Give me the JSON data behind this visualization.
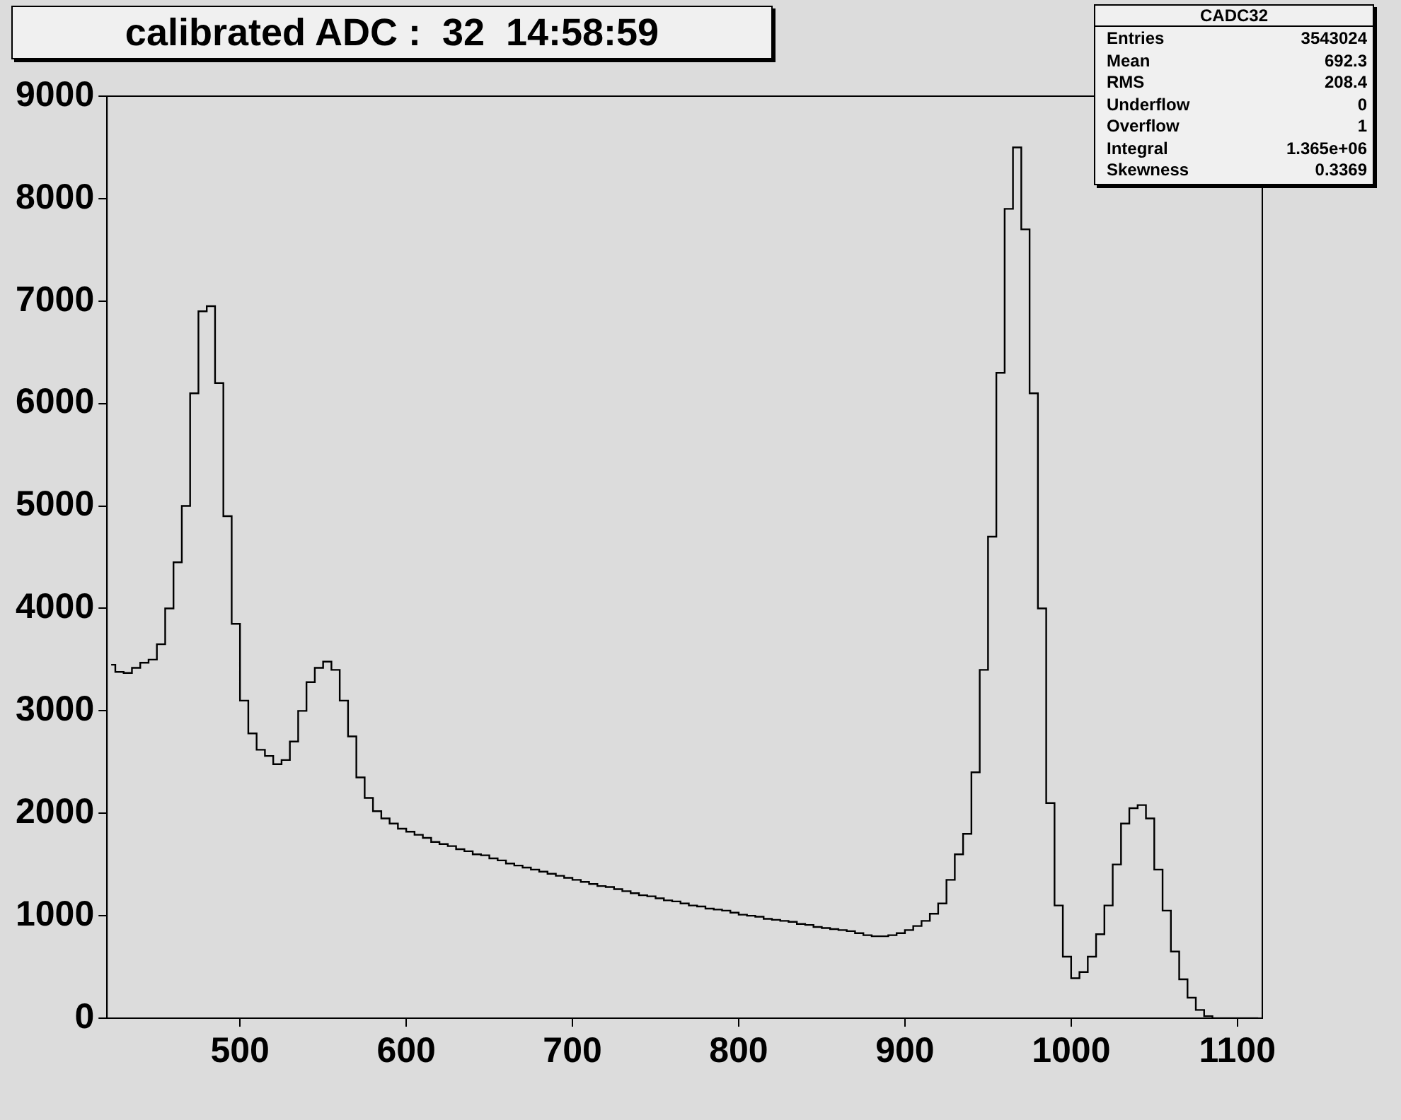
{
  "chart_data": {
    "type": "histogram",
    "title": "calibrated ADC :  32  14:58:59",
    "bins": [
      420,
      425,
      430,
      435,
      440,
      445,
      450,
      455,
      460,
      465,
      470,
      475,
      480,
      485,
      490,
      495,
      500,
      505,
      510,
      515,
      520,
      525,
      530,
      535,
      540,
      545,
      550,
      555,
      560,
      565,
      570,
      575,
      580,
      585,
      590,
      595,
      600,
      605,
      610,
      615,
      620,
      625,
      630,
      635,
      640,
      645,
      650,
      655,
      660,
      665,
      670,
      675,
      680,
      685,
      690,
      695,
      700,
      705,
      710,
      715,
      720,
      725,
      730,
      735,
      740,
      745,
      750,
      755,
      760,
      765,
      770,
      775,
      780,
      785,
      790,
      795,
      800,
      805,
      810,
      815,
      820,
      825,
      830,
      835,
      840,
      845,
      850,
      855,
      860,
      865,
      870,
      875,
      880,
      885,
      890,
      895,
      900,
      905,
      910,
      915,
      920,
      925,
      930,
      935,
      940,
      945,
      950,
      955,
      960,
      965,
      970,
      975,
      980,
      985,
      990,
      995,
      1000,
      1005,
      1010,
      1015,
      1020,
      1025,
      1030,
      1035,
      1040,
      1045,
      1050,
      1055,
      1060,
      1065,
      1070,
      1075,
      1080,
      1085,
      1090,
      1095,
      1100,
      1105,
      1110,
      1115
    ],
    "values": [
      3450,
      3380,
      3370,
      3420,
      3470,
      3500,
      3650,
      4000,
      4450,
      5000,
      6100,
      6900,
      6950,
      6200,
      4900,
      3850,
      3100,
      2780,
      2620,
      2560,
      2480,
      2520,
      2700,
      3000,
      3280,
      3420,
      3480,
      3400,
      3100,
      2750,
      2350,
      2150,
      2020,
      1950,
      1900,
      1850,
      1820,
      1790,
      1760,
      1720,
      1700,
      1680,
      1650,
      1630,
      1600,
      1590,
      1560,
      1540,
      1510,
      1490,
      1470,
      1450,
      1430,
      1410,
      1390,
      1370,
      1350,
      1330,
      1310,
      1290,
      1280,
      1260,
      1240,
      1220,
      1200,
      1190,
      1170,
      1150,
      1140,
      1120,
      1100,
      1090,
      1070,
      1060,
      1050,
      1030,
      1010,
      1000,
      990,
      970,
      960,
      950,
      940,
      920,
      910,
      890,
      880,
      870,
      860,
      850,
      830,
      810,
      800,
      800,
      810,
      830,
      860,
      900,
      950,
      1020,
      1120,
      1350,
      1600,
      1800,
      2400,
      3400,
      4700,
      6300,
      7900,
      8500,
      7700,
      6100,
      4000,
      2100,
      1100,
      600,
      390,
      450,
      600,
      820,
      1100,
      1500,
      1900,
      2050,
      2080,
      1950,
      1450,
      1050,
      650,
      380,
      200,
      80,
      20,
      0,
      0,
      0,
      0,
      0,
      0
    ],
    "color": "#000000",
    "xlim": [
      420,
      1115
    ],
    "xticks": [
      500,
      600,
      700,
      800,
      900,
      1000,
      1100
    ],
    "ylim": [
      0,
      9000
    ],
    "yticks": [
      0,
      1000,
      2000,
      3000,
      4000,
      5000,
      6000,
      7000,
      8000,
      9000
    ],
    "grid": false,
    "annotations": [
      "CADC32",
      "Entries",
      "3543024",
      "Mean",
      "692.3",
      "RMS",
      "208.4",
      "Underflow",
      "0",
      "Overflow",
      "1",
      "Integral",
      "1.365e+06",
      "Skewness",
      "0.3369"
    ]
  }
}
